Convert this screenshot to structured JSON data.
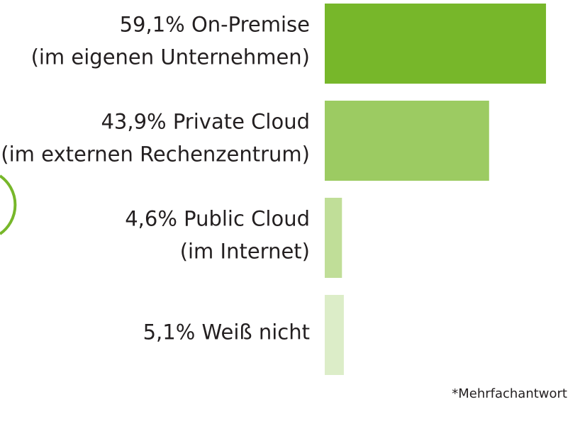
{
  "chart_data": {
    "type": "bar",
    "orientation": "horizontal",
    "categories": [
      [
        "On-Premise",
        "(im eigenen Unternehmen)"
      ],
      [
        "Private Cloud",
        "(im externen Rechenzentrum)"
      ],
      [
        "Public Cloud",
        "(im Internet)"
      ],
      [
        "Weiß nicht"
      ]
    ],
    "values": [
      59.1,
      43.9,
      4.6,
      5.1
    ],
    "value_labels": [
      "59,1%",
      "43,9%",
      "4,6%",
      "5,1%"
    ],
    "colors": [
      "#77b72a",
      "#9ccb62",
      "#c0de98",
      "#dcedc8"
    ],
    "footnote": "*Mehrfachantwort"
  }
}
